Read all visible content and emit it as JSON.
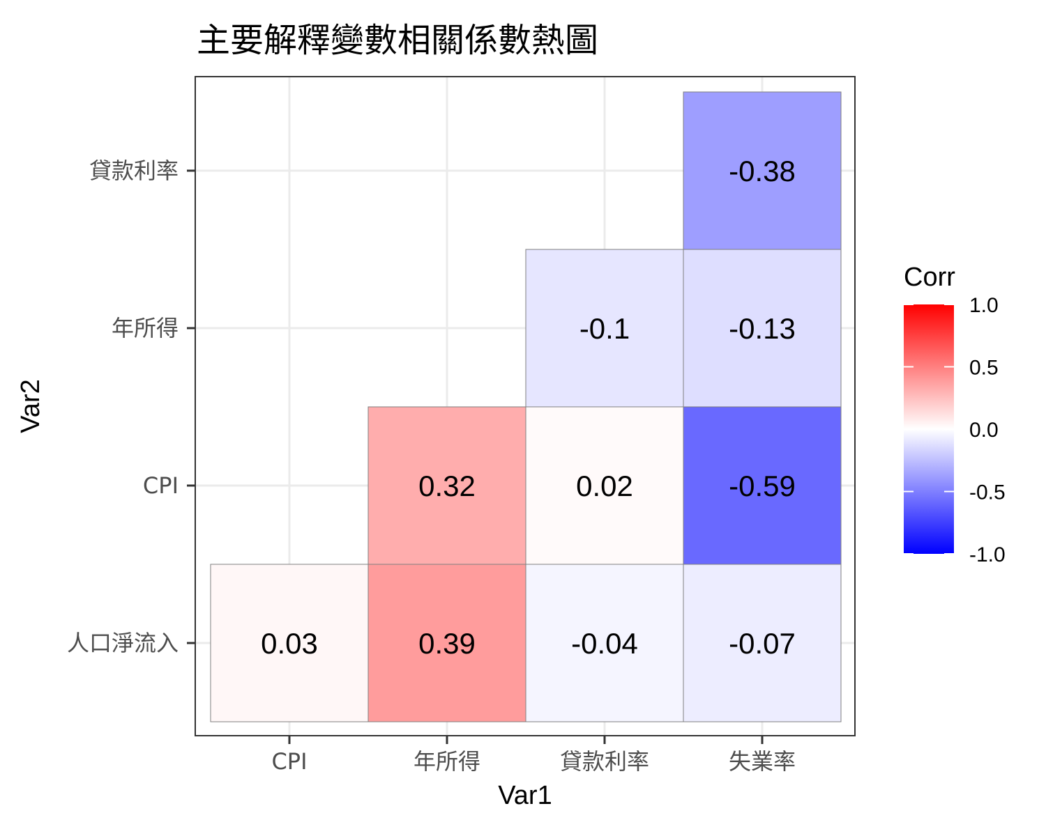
{
  "chart_data": {
    "type": "heatmap",
    "title": "主要解釋變數相關係數熱圖",
    "xlabel": "Var1",
    "ylabel": "Var2",
    "x_categories": [
      "CPI",
      "年所得",
      "貸款利率",
      "失業率"
    ],
    "y_categories": [
      "人口淨流入",
      "CPI",
      "年所得",
      "貸款利率"
    ],
    "cells": [
      {
        "x": "CPI",
        "y": "人口淨流入",
        "value": 0.03,
        "label": "0.03"
      },
      {
        "x": "年所得",
        "y": "人口淨流入",
        "value": 0.39,
        "label": "0.39"
      },
      {
        "x": "貸款利率",
        "y": "人口淨流入",
        "value": -0.04,
        "label": "-0.04"
      },
      {
        "x": "失業率",
        "y": "人口淨流入",
        "value": -0.07,
        "label": "-0.07"
      },
      {
        "x": "年所得",
        "y": "CPI",
        "value": 0.32,
        "label": "0.32"
      },
      {
        "x": "貸款利率",
        "y": "CPI",
        "value": 0.02,
        "label": "0.02"
      },
      {
        "x": "失業率",
        "y": "CPI",
        "value": -0.59,
        "label": "-0.59"
      },
      {
        "x": "貸款利率",
        "y": "年所得",
        "value": -0.1,
        "label": "-0.1"
      },
      {
        "x": "失業率",
        "y": "年所得",
        "value": -0.13,
        "label": "-0.13"
      },
      {
        "x": "失業率",
        "y": "貸款利率",
        "value": -0.38,
        "label": "-0.38"
      }
    ],
    "legend": {
      "title": "Corr",
      "range": [
        -1,
        1
      ],
      "ticks": [
        {
          "value": 1.0,
          "label": "1.0"
        },
        {
          "value": 0.5,
          "label": "0.5"
        },
        {
          "value": 0.0,
          "label": "0.0"
        },
        {
          "value": -0.5,
          "label": "-0.5"
        },
        {
          "value": -1.0,
          "label": "-1.0"
        }
      ],
      "placement": "right"
    },
    "colors": {
      "low": "#0000ff",
      "mid": "#ffffff",
      "high": "#ff0000"
    },
    "grid": true
  }
}
